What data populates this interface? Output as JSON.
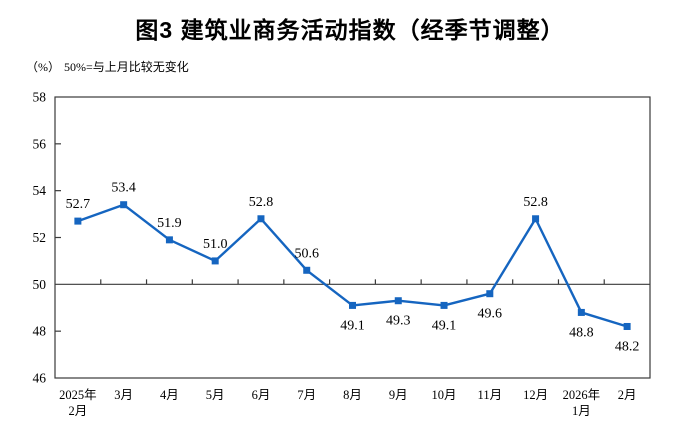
{
  "chart_data": {
    "type": "line",
    "title": "图3 建筑业商务活动指数（经季节调整）",
    "unit_label": "（%）",
    "note": "50%=与上月比较无变化",
    "categories": [
      [
        "2025年",
        "2月"
      ],
      [
        "3月"
      ],
      [
        "4月"
      ],
      [
        "5月"
      ],
      [
        "6月"
      ],
      [
        "7月"
      ],
      [
        "8月"
      ],
      [
        "9月"
      ],
      [
        "10月"
      ],
      [
        "11月"
      ],
      [
        "12月"
      ],
      [
        "2026年",
        "1月"
      ],
      [
        "2月"
      ]
    ],
    "values": [
      52.7,
      53.4,
      51.9,
      51.0,
      52.8,
      50.6,
      49.1,
      49.3,
      49.1,
      49.6,
      52.8,
      48.8,
      48.2
    ],
    "ylim": [
      46,
      58
    ],
    "yticks": [
      46,
      48,
      50,
      52,
      54,
      56,
      58
    ],
    "reference_line": 50,
    "line_color": "#1565c0",
    "axis_color": "#3a3a3a",
    "marker": "square",
    "legend": "none",
    "grid": "off"
  }
}
